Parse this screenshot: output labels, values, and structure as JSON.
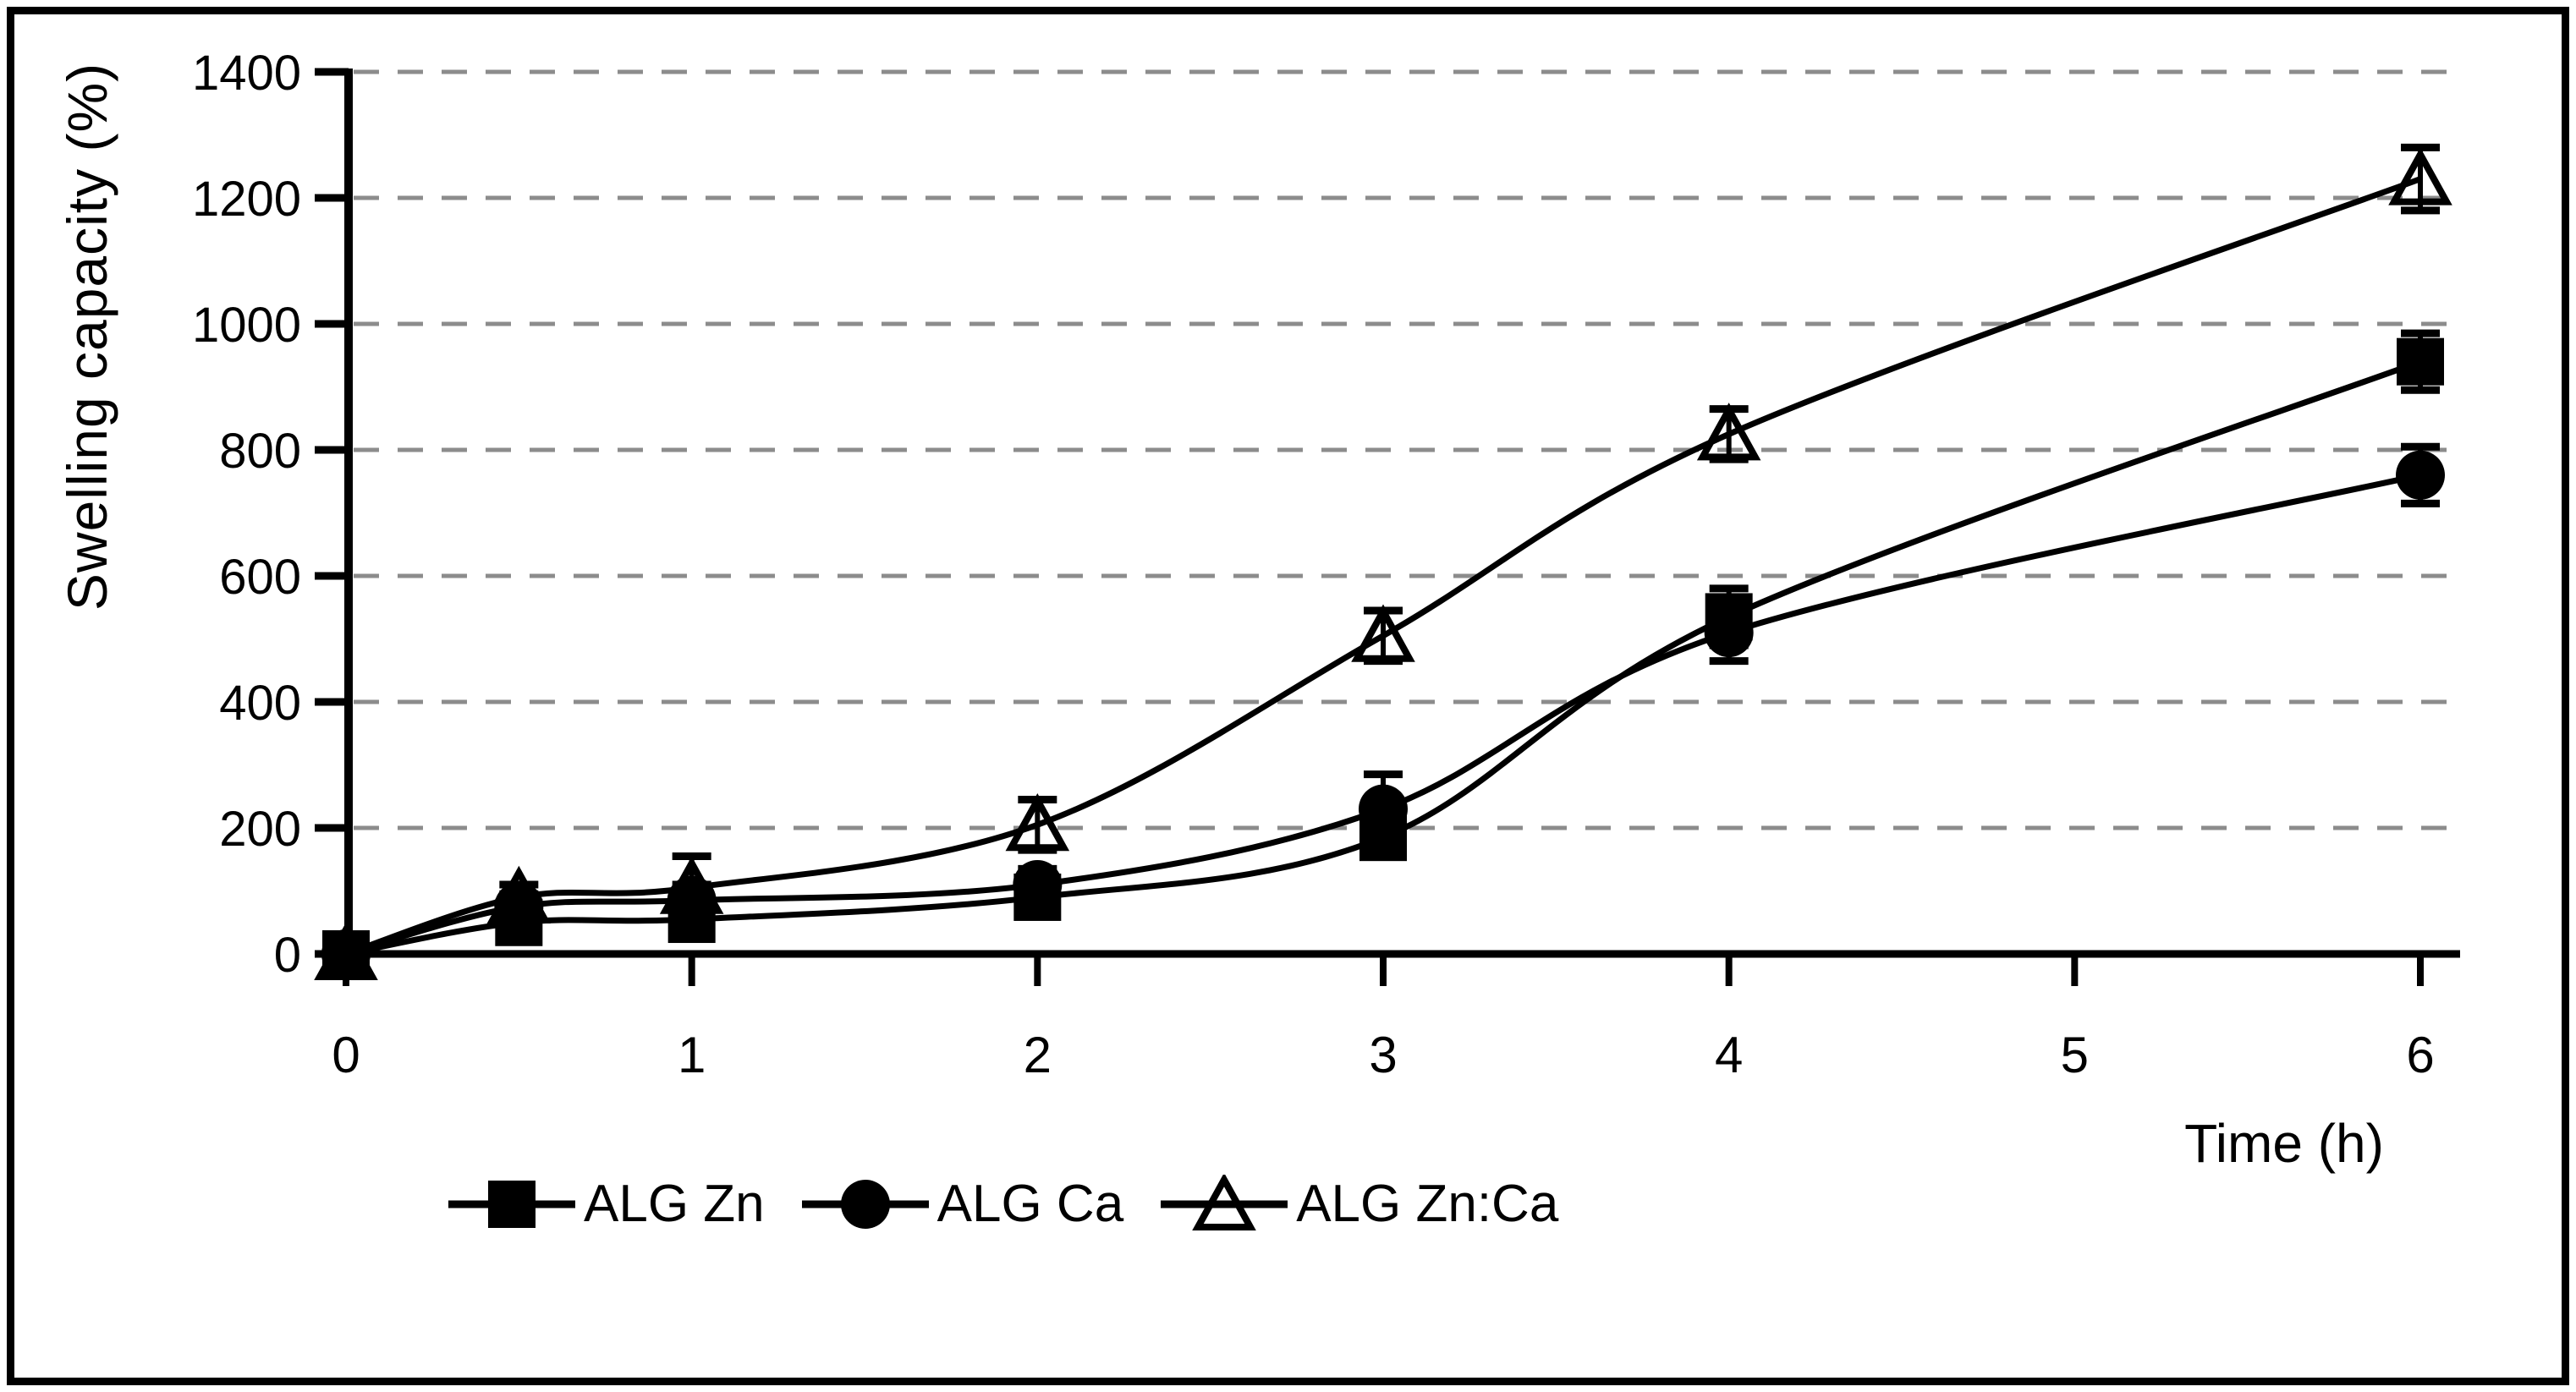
{
  "chart_data": {
    "type": "line",
    "title": "",
    "xlabel": "Time (h)",
    "ylabel": "Swelling capacity (%)",
    "x_tick_labels": [
      "0",
      "1",
      "2",
      "3",
      "4",
      "5",
      "6"
    ],
    "x_tick_values": [
      0,
      1,
      2,
      3,
      4,
      5,
      6
    ],
    "y_tick_labels": [
      "0",
      "200",
      "400",
      "600",
      "800",
      "1000",
      "1200",
      "1400"
    ],
    "y_tick_values": [
      0,
      200,
      400,
      600,
      800,
      1000,
      1200,
      1400
    ],
    "xlim": [
      0,
      6.12
    ],
    "ylim": [
      0,
      1400
    ],
    "grid": "horizontal-dashed",
    "legend_position": "bottom-left",
    "x": [
      0,
      0.5,
      1,
      2,
      3,
      4,
      6
    ],
    "series": [
      {
        "name": "ALG Zn",
        "marker": "square-filled",
        "values": [
          0,
          50,
          55,
          90,
          185,
          535,
          940
        ],
        "errors": [
          0,
          20,
          25,
          25,
          30,
          45,
          45
        ]
      },
      {
        "name": "ALG Ca",
        "marker": "circle-filled",
        "values": [
          0,
          75,
          85,
          110,
          230,
          510,
          760
        ],
        "errors": [
          0,
          20,
          25,
          25,
          55,
          45,
          45
        ]
      },
      {
        "name": "ALG Zn:Ca",
        "marker": "triangle-open",
        "values": [
          0,
          90,
          105,
          205,
          505,
          825,
          1230
        ],
        "errors": [
          0,
          20,
          50,
          40,
          40,
          40,
          50
        ]
      }
    ]
  },
  "colors": {
    "series": "#000000",
    "grid": "#8c8c8c",
    "background": "#ffffff",
    "border": "#000000"
  }
}
